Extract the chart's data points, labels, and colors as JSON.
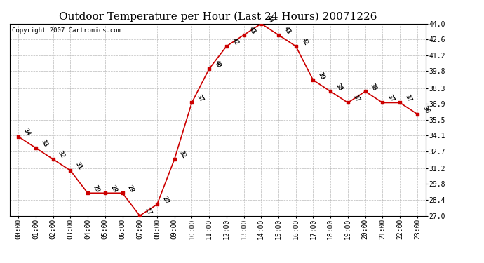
{
  "title": "Outdoor Temperature per Hour (Last 24 Hours) 20071226",
  "copyright": "Copyright 2007 Cartronics.com",
  "hours": [
    "00:00",
    "01:00",
    "02:00",
    "03:00",
    "04:00",
    "05:00",
    "06:00",
    "07:00",
    "08:00",
    "09:00",
    "10:00",
    "11:00",
    "12:00",
    "13:00",
    "14:00",
    "15:00",
    "16:00",
    "17:00",
    "18:00",
    "19:00",
    "20:00",
    "21:00",
    "22:00",
    "23:00"
  ],
  "temps": [
    34,
    33,
    32,
    31,
    29,
    29,
    29,
    27,
    28,
    32,
    37,
    40,
    42,
    43,
    44,
    43,
    42,
    39,
    38,
    37,
    38,
    37,
    37,
    36
  ],
  "line_color": "#cc0000",
  "marker_color": "#cc0000",
  "bg_color": "#ffffff",
  "grid_color": "#bbbbbb",
  "ylim_min": 27.0,
  "ylim_max": 44.0,
  "yticks": [
    27.0,
    28.4,
    29.8,
    31.2,
    32.7,
    34.1,
    35.5,
    36.9,
    38.3,
    39.8,
    41.2,
    42.6,
    44.0
  ],
  "title_fontsize": 11,
  "copyright_fontsize": 6.5,
  "label_fontsize": 6.5,
  "tick_fontsize": 7
}
